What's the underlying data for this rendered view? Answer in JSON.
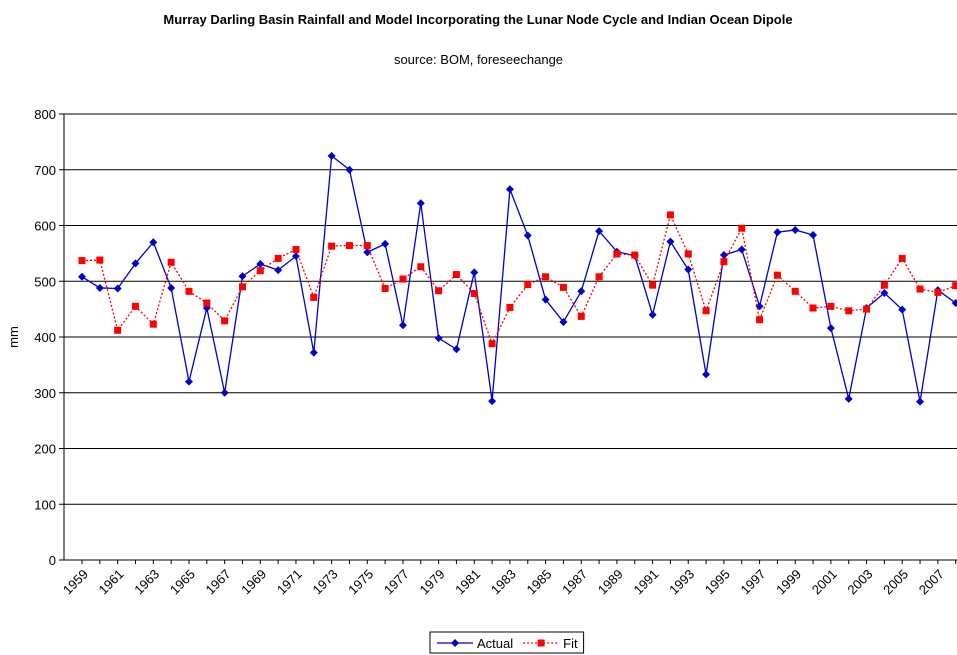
{
  "chart_data": {
    "type": "line",
    "title": "Murray Darling Basin Rainfall and Model Incorporating the Lunar Node Cycle and Indian Ocean Dipole",
    "subtitle": "source: BOM, foreseechange",
    "y_label": "mm",
    "categories": [
      "1959",
      null,
      "1961",
      null,
      "1963",
      null,
      "1965",
      null,
      "1967",
      null,
      "1969",
      null,
      "1971",
      null,
      "1973",
      null,
      "1975",
      null,
      "1977",
      null,
      "1979",
      null,
      "1981",
      null,
      "1983",
      null,
      "1985",
      null,
      "1987",
      null,
      "1989",
      null,
      "1991",
      null,
      "1993",
      null,
      "1995",
      null,
      "1997",
      null,
      "1999",
      null,
      "2001",
      null,
      "2003",
      null,
      "2005",
      null,
      "2007",
      null
    ],
    "series": [
      {
        "name": "Actual",
        "color": "#0000cc",
        "marker": "diamond",
        "dash": "solid",
        "values": [
          508,
          488,
          487,
          532,
          570,
          488,
          320,
          452,
          300,
          509,
          531,
          520,
          545,
          372,
          725,
          700,
          552,
          567,
          421,
          640,
          398,
          378,
          516,
          285,
          665,
          582,
          467,
          427,
          482,
          590,
          553,
          546,
          440,
          571,
          521,
          333,
          547,
          557,
          455,
          588,
          592,
          583,
          416,
          289,
          452,
          479,
          449,
          284,
          484,
          461
        ]
      },
      {
        "name": "Fit",
        "color": "#ff0000",
        "marker": "square",
        "dash": "dotted",
        "values": [
          537,
          538,
          412,
          455,
          423,
          534,
          482,
          461,
          429,
          490,
          519,
          541,
          557,
          471,
          563,
          564,
          564,
          487,
          504,
          526,
          483,
          512,
          478,
          388,
          453,
          494,
          508,
          489,
          437,
          508,
          549,
          547,
          493,
          619,
          549,
          447,
          535,
          595,
          431,
          511,
          482,
          452,
          455,
          447,
          450,
          493,
          541,
          486,
          480,
          492
        ]
      }
    ],
    "ylim": [
      0,
      800
    ],
    "yticks": [
      0,
      100,
      200,
      300,
      400,
      500,
      600,
      700,
      800
    ],
    "grid": true,
    "legend": "bottom"
  }
}
